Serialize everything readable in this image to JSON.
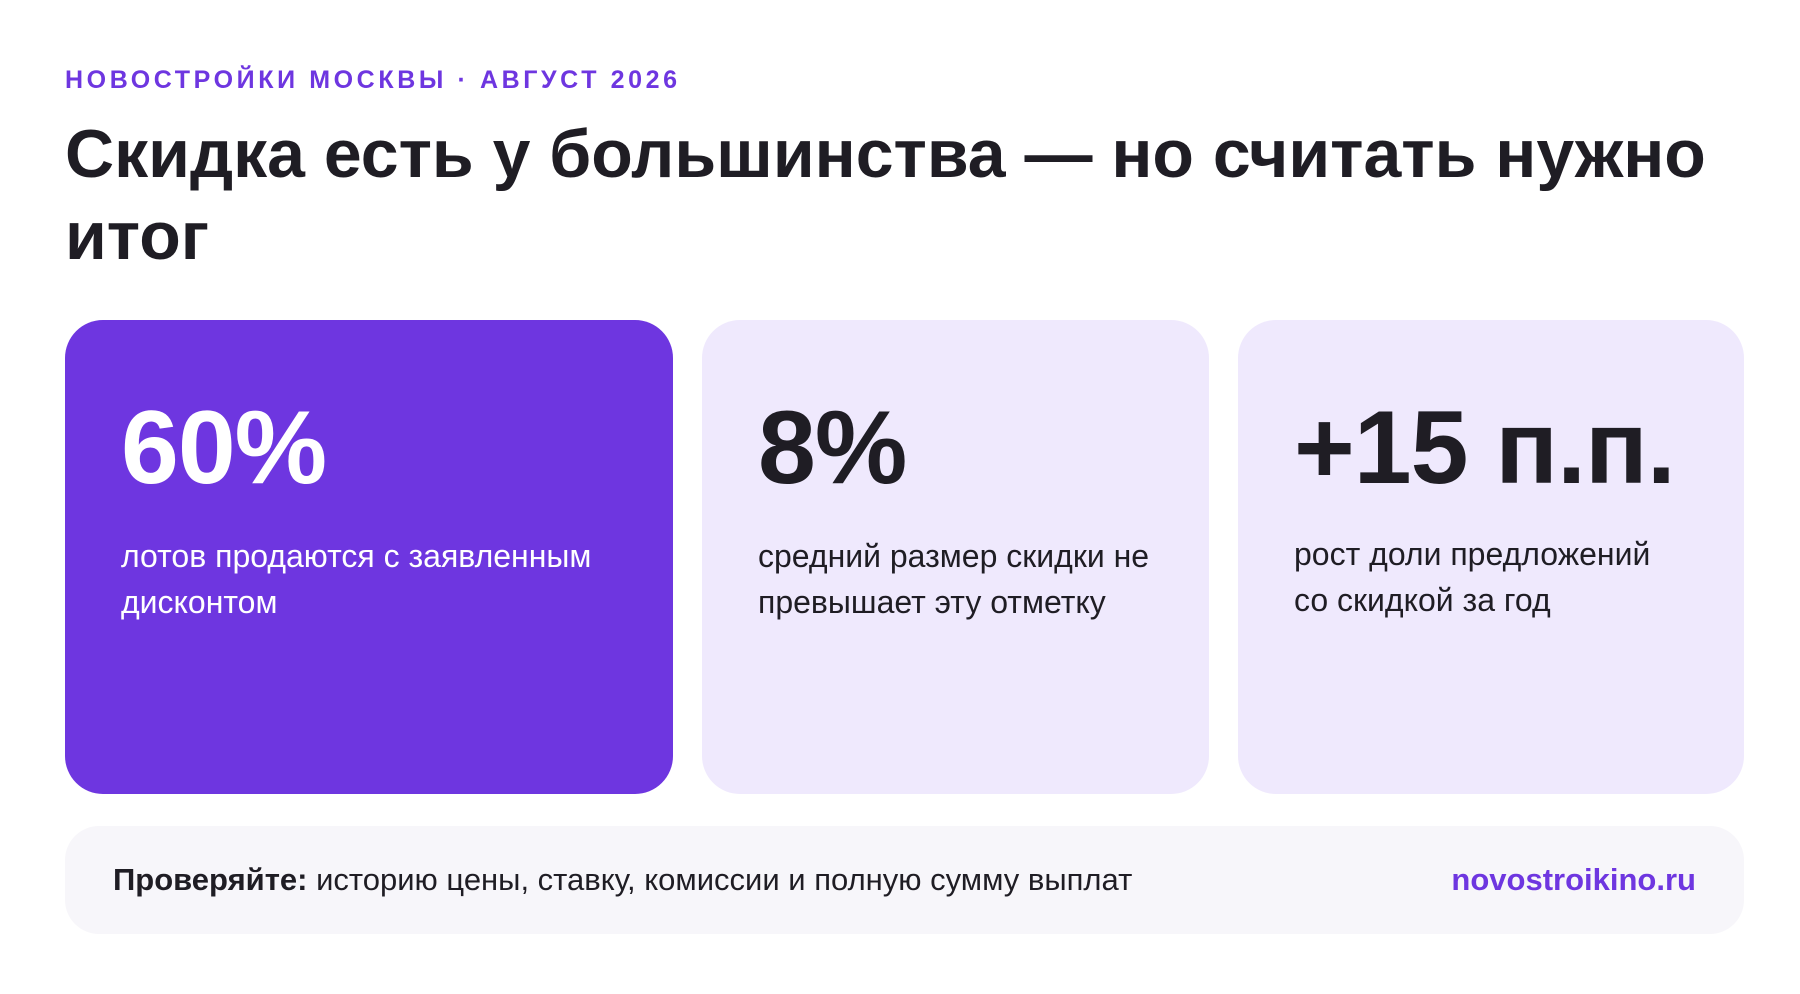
{
  "header": {
    "kicker": "НОВОСТРОЙКИ МОСКВЫ · АВГУСТ 2026",
    "title": "Скидка есть у большинства — но считать нужно итог"
  },
  "stats": [
    {
      "value": "60%",
      "description": "лотов продаются с заявленным дисконтом"
    },
    {
      "value": "8%",
      "description": "средний размер скидки не превышает эту отметку"
    },
    {
      "value": "+15 п.п.",
      "description": "рост доли предложений со скидкой за год"
    }
  ],
  "footer": {
    "label": "Проверяйте:",
    "text": " историю цены, ставку, комиссии и полную сумму выплат",
    "link": "novostroikino.ru"
  },
  "colors": {
    "accent": "#6e36e0",
    "card_light": "#efe9fd",
    "footer_bg": "#f7f6fa",
    "text": "#1f1d24"
  }
}
